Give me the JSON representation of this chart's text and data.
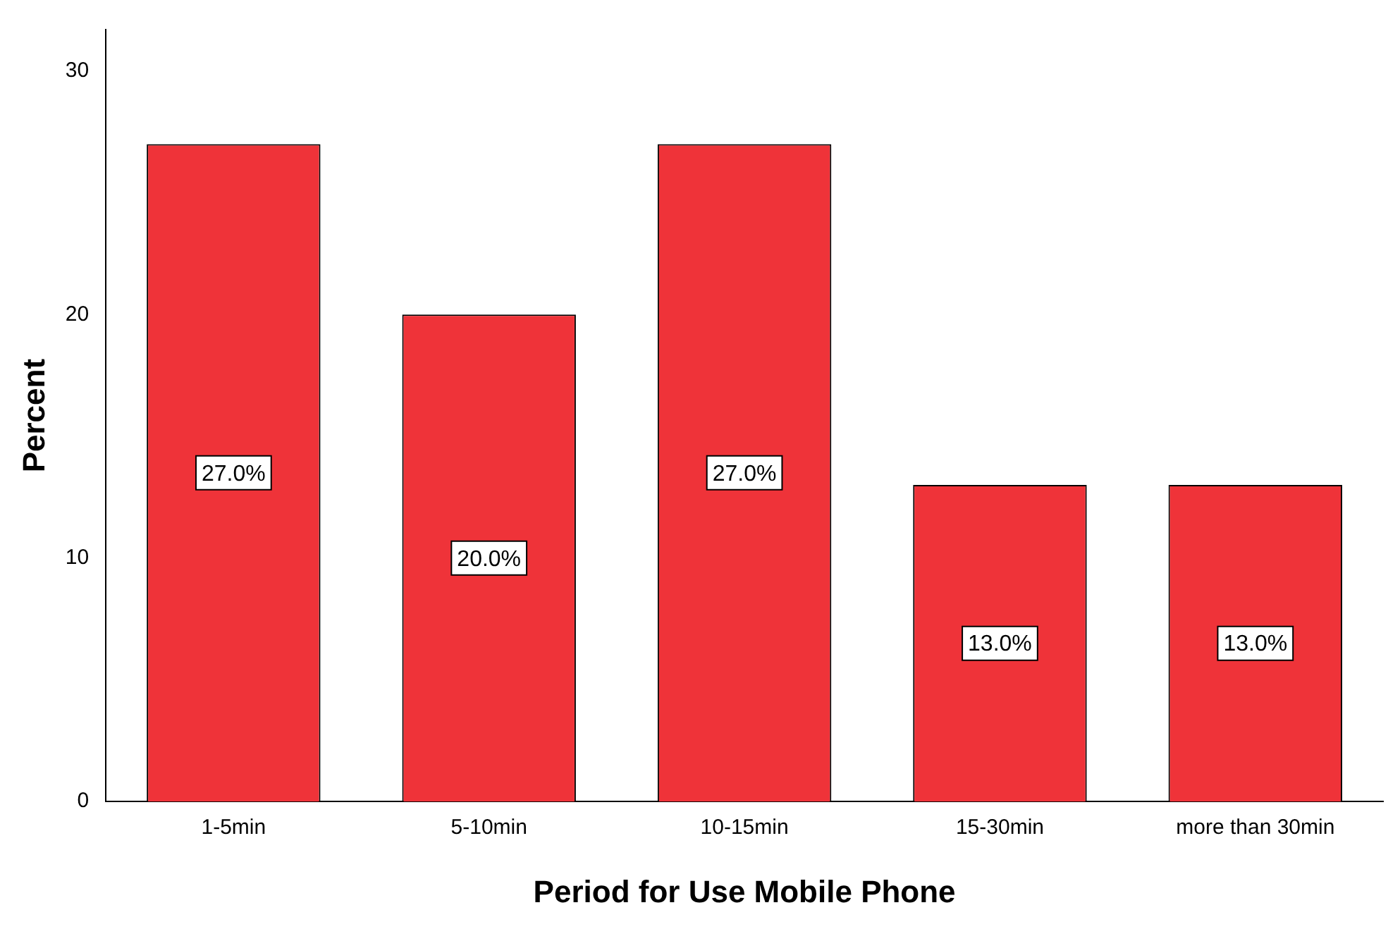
{
  "chart_data": {
    "type": "bar",
    "xlabel": "Period for Use Mobile Phone",
    "ylabel": "Percent",
    "categories": [
      "1-5min",
      "5-10min",
      "10-15min",
      "15-30min",
      "more than 30min"
    ],
    "values": [
      27,
      20,
      27,
      13,
      13
    ],
    "value_labels": [
      "27.0%",
      "20.0%",
      "27.0%",
      "13.0%",
      "13.0%"
    ],
    "color": "#ef3339",
    "ylim": [
      0,
      31.7
    ],
    "yticks": [
      0,
      10,
      20,
      30
    ],
    "grid": false,
    "legend": false
  }
}
